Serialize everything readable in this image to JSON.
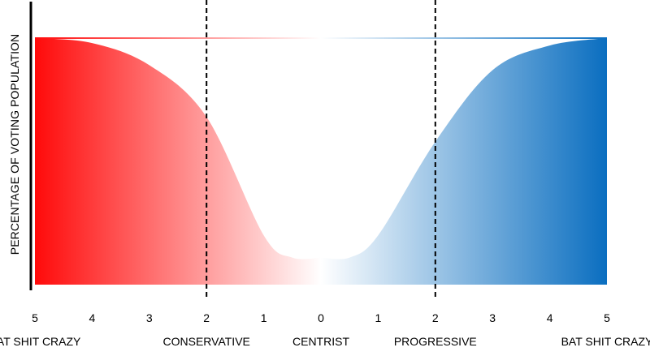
{
  "chart_data": {
    "type": "area",
    "title": "",
    "ylabel": "PERCENTAGE OF VOTING POPULATION",
    "xlabel": "",
    "x_ticks": [
      "5",
      "4",
      "3",
      "2",
      "1",
      "0",
      "1",
      "2",
      "3",
      "4",
      "5"
    ],
    "x_values": [
      -5,
      -4,
      -3,
      -2,
      -1,
      0,
      1,
      2,
      3,
      4,
      5
    ],
    "categories": [
      {
        "label": "BAT SHIT CRAZY",
        "x": -5
      },
      {
        "label": "CONSERVATIVE",
        "x": -2
      },
      {
        "label": "CENTRIST",
        "x": 0
      },
      {
        "label": "PROGRESSIVE",
        "x": 2
      },
      {
        "label": "BAT SHIT CRAZY",
        "x": 5
      }
    ],
    "reference_lines": [
      -2,
      2
    ],
    "series": [
      {
        "color_from": "#ff0a0a",
        "color_to": "#ffffff",
        "points": [
          [
            -5,
            1.0
          ],
          [
            -4,
            0.98
          ],
          [
            -3,
            0.89
          ],
          [
            -2,
            0.68
          ],
          [
            -1,
            0.2
          ],
          [
            -0.5,
            0.11
          ],
          [
            0,
            0.11
          ]
        ]
      },
      {
        "color_from": "#ffffff",
        "color_to": "#0a6ec0",
        "points": [
          [
            0,
            0.11
          ],
          [
            0.5,
            0.11
          ],
          [
            1,
            0.2
          ],
          [
            2,
            0.58
          ],
          [
            3,
            0.87
          ],
          [
            4,
            0.97
          ],
          [
            5,
            1.0
          ]
        ]
      }
    ],
    "ylim": [
      0,
      1
    ],
    "grid": false,
    "legend": "none"
  }
}
